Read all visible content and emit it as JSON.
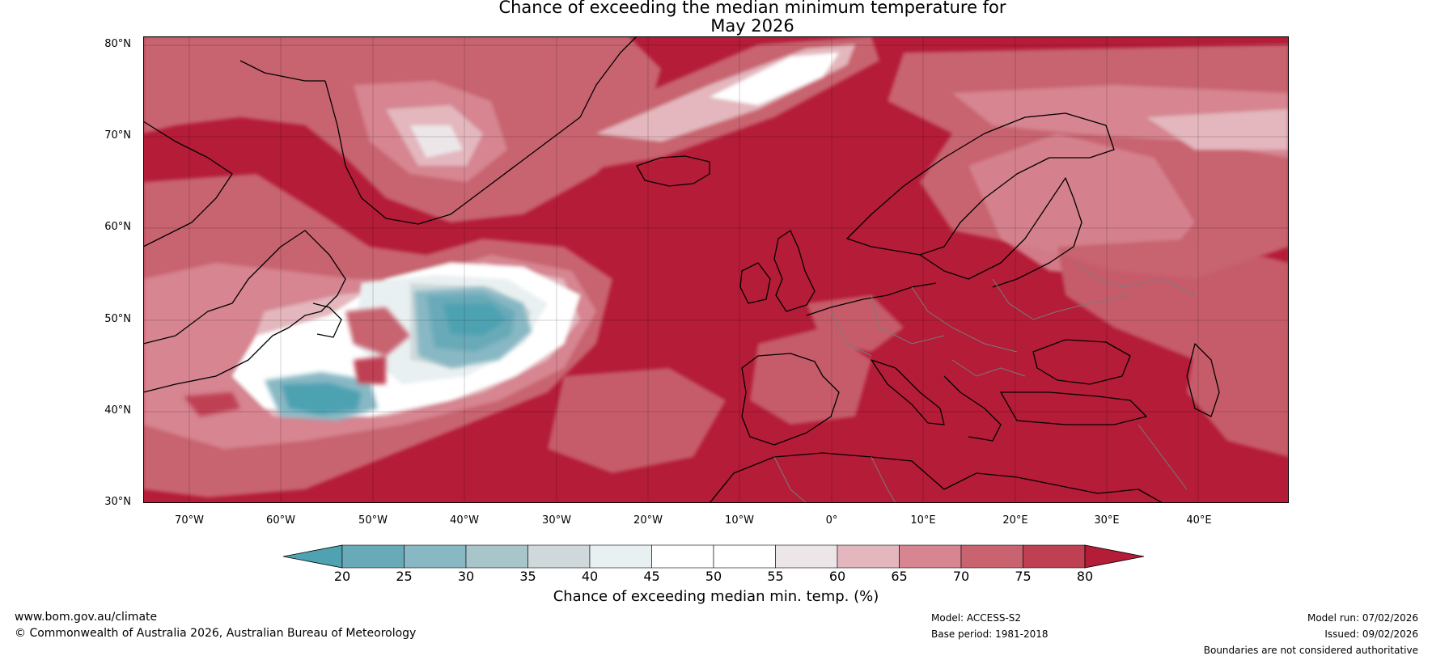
{
  "title": {
    "line1": "Chance of exceeding the median minimum temperature for",
    "line2": "May 2026"
  },
  "map": {
    "region": "North Atlantic and Europe",
    "lat_ticks": [
      "80°N",
      "70°N",
      "60°N",
      "50°N",
      "40°N",
      "30°N"
    ],
    "lon_ticks": [
      "70°W",
      "60°W",
      "50°W",
      "40°W",
      "30°W",
      "20°W",
      "10°W",
      "0°",
      "10°E",
      "20°E",
      "30°E",
      "40°E"
    ],
    "dominant_color": "#b41c38"
  },
  "colorbar": {
    "ticks": [
      "20",
      "25",
      "30",
      "35",
      "40",
      "45",
      "50",
      "55",
      "60",
      "65",
      "70",
      "75",
      "80"
    ],
    "colors": [
      "#4ea2b2",
      "#69aab8",
      "#88b8c4",
      "#a8c6ca",
      "#cfd9db",
      "#e9f0f1",
      "#ffffff",
      "#ffffff",
      "#ece6e8",
      "#e3b7bd",
      "#d68591",
      "#c8636f",
      "#bf4052",
      "#b41c38"
    ],
    "label": "Chance of exceeding median min. temp. (%)"
  },
  "footer": {
    "url": "www.bom.gov.au/climate",
    "copyright": "© Commonwealth of Australia 2026, Australian Bureau of Meteorology",
    "model": "Model: ACCESS-S2",
    "base_period": "Base period: 1981-2018",
    "model_run": "Model run: 07/02/2026",
    "issued": "Issued: 09/02/2026",
    "disclaimer": "Boundaries are not considered authoritative"
  }
}
